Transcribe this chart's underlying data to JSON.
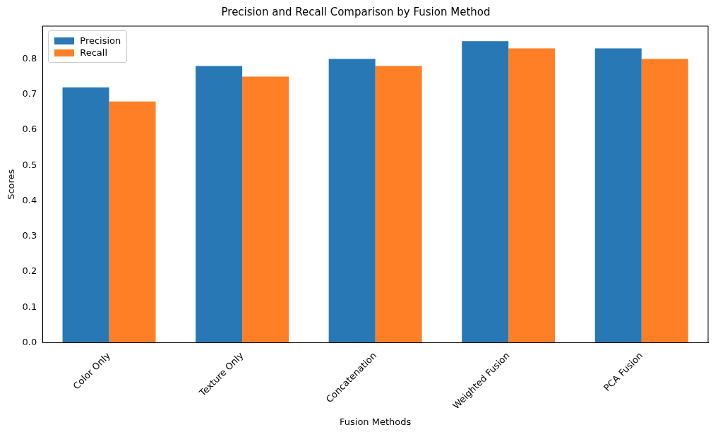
{
  "chart_data": {
    "type": "bar",
    "title": "Precision and Recall Comparison by Fusion Method",
    "xlabel": "Fusion Methods",
    "ylabel": "Scores",
    "categories": [
      "Color Only",
      "Texture Only",
      "Concatenation",
      "Weighted Fusion",
      "PCA Fusion"
    ],
    "series": [
      {
        "name": "Precision",
        "color": "#2878b5",
        "values": [
          0.72,
          0.78,
          0.8,
          0.85,
          0.83
        ]
      },
      {
        "name": "Recall",
        "color": "#ff7f27",
        "values": [
          0.68,
          0.75,
          0.78,
          0.83,
          0.8
        ]
      }
    ],
    "ylim": [
      0,
      0.8925
    ],
    "yticks": [
      {
        "value": 0,
        "label": "0.0"
      },
      0.1,
      0.2,
      0.3,
      0.4,
      0.5,
      0.6,
      0.7,
      0.8
    ],
    "grid": false,
    "legend": "top left"
  }
}
